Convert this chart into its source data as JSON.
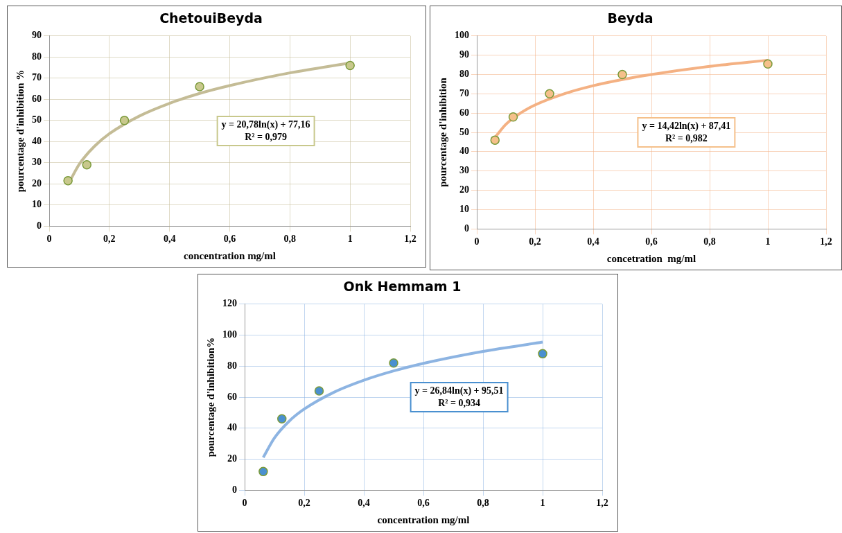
{
  "chart_data": [
    {
      "type": "scatter",
      "title": "ChetouiBeyda",
      "xlabel": "concentration mg/ml",
      "ylabel": "pourcentage d'inhibition %",
      "xlim": [
        0,
        1.2
      ],
      "xticks": [
        {
          "value": 0,
          "label": "0"
        },
        {
          "value": 0.2,
          "label": "0,2"
        },
        {
          "value": 0.4,
          "label": "0,4"
        },
        {
          "value": 0.6,
          "label": "0,6"
        },
        {
          "value": 0.8,
          "label": "0,8"
        },
        {
          "value": 1,
          "label": "1"
        },
        {
          "value": 1.2,
          "label": "1,2"
        }
      ],
      "ylim": [
        0,
        90
      ],
      "yticks": [
        0,
        10,
        20,
        30,
        40,
        50,
        60,
        70,
        80,
        90
      ],
      "grid": true,
      "annotations": [
        "y = 20,78ln(x) + 77,16",
        "R² = 0,979"
      ],
      "series": [
        {
          "type": "scatter",
          "marker": "circle",
          "color": "#c8c88c",
          "x": [
            0.0625,
            0.125,
            0.25,
            0.5,
            1
          ],
          "values": [
            21.5,
            29,
            50,
            66,
            76
          ]
        },
        {
          "type": "line",
          "marker": "none",
          "color": "#c4bc96",
          "x": [
            0.0625,
            0.1,
            0.15,
            0.2,
            0.3,
            0.4,
            0.5,
            0.6,
            0.8,
            1
          ],
          "values": [
            19.6,
            29.3,
            37.7,
            43.7,
            52.1,
            58.1,
            62.8,
            66.5,
            72.5,
            77.2
          ]
        }
      ]
    },
    {
      "type": "scatter",
      "title": "Beyda",
      "xlabel": "concetration  mg/ml",
      "ylabel": "pourcentage d'inhibition",
      "xlim": [
        0,
        1.2
      ],
      "xticks": [
        {
          "value": 0,
          "label": "0"
        },
        {
          "value": 0.2,
          "label": "0,2"
        },
        {
          "value": 0.4,
          "label": "0,4"
        },
        {
          "value": 0.6,
          "label": "0,6"
        },
        {
          "value": 0.8,
          "label": "0,8"
        },
        {
          "value": 1,
          "label": "1"
        },
        {
          "value": 1.2,
          "label": "1,2"
        }
      ],
      "ylim": [
        0,
        100
      ],
      "yticks": [
        0,
        10,
        20,
        30,
        40,
        50,
        60,
        70,
        80,
        90,
        100
      ],
      "grid": true,
      "annotations": [
        "y = 14,42ln(x) + 87,41",
        "R² = 0,982"
      ],
      "series": [
        {
          "type": "scatter",
          "marker": "circle",
          "color": "#f5c08a",
          "x": [
            0.0625,
            0.125,
            0.25,
            0.5,
            1
          ],
          "values": [
            46,
            58,
            70,
            80,
            85.5
          ]
        },
        {
          "type": "line",
          "marker": "none",
          "color": "#f4b183",
          "x": [
            0.0625,
            0.1,
            0.15,
            0.2,
            0.3,
            0.4,
            0.5,
            0.6,
            0.8,
            1
          ],
          "values": [
            47.4,
            54.2,
            60,
            64.2,
            70,
            74.2,
            77.4,
            80,
            84.2,
            87.4
          ]
        }
      ]
    },
    {
      "type": "scatter",
      "title": "Onk Hemmam 1",
      "xlabel": "concentration mg/ml",
      "ylabel": "pourcentage d'inhibition%",
      "xlim": [
        0,
        1.2
      ],
      "xticks": [
        {
          "value": 0,
          "label": "0"
        },
        {
          "value": 0.2,
          "label": "0,2"
        },
        {
          "value": 0.4,
          "label": "0,4"
        },
        {
          "value": 0.6,
          "label": "0,6"
        },
        {
          "value": 0.8,
          "label": "0,8"
        },
        {
          "value": 1,
          "label": "1"
        },
        {
          "value": 1.2,
          "label": "1,2"
        }
      ],
      "ylim": [
        0,
        120
      ],
      "yticks": [
        0,
        20,
        40,
        60,
        80,
        100,
        120
      ],
      "grid": true,
      "annotations": [
        "y = 26,84ln(x) + 95,51",
        "R² = 0,934"
      ],
      "series": [
        {
          "type": "scatter",
          "marker": "circle",
          "color": "#4a90d0",
          "x": [
            0.0625,
            0.125,
            0.25,
            0.5,
            1
          ],
          "values": [
            12,
            46,
            64,
            82,
            88
          ]
        },
        {
          "type": "line",
          "marker": "none",
          "color": "#8db4e2",
          "x": [
            0.0625,
            0.1,
            0.15,
            0.2,
            0.3,
            0.4,
            0.5,
            0.6,
            0.8,
            1
          ],
          "values": [
            21.1,
            33.7,
            44.6,
            52.3,
            63.2,
            70.9,
            76.9,
            81.8,
            89.5,
            95.5
          ]
        }
      ]
    }
  ]
}
